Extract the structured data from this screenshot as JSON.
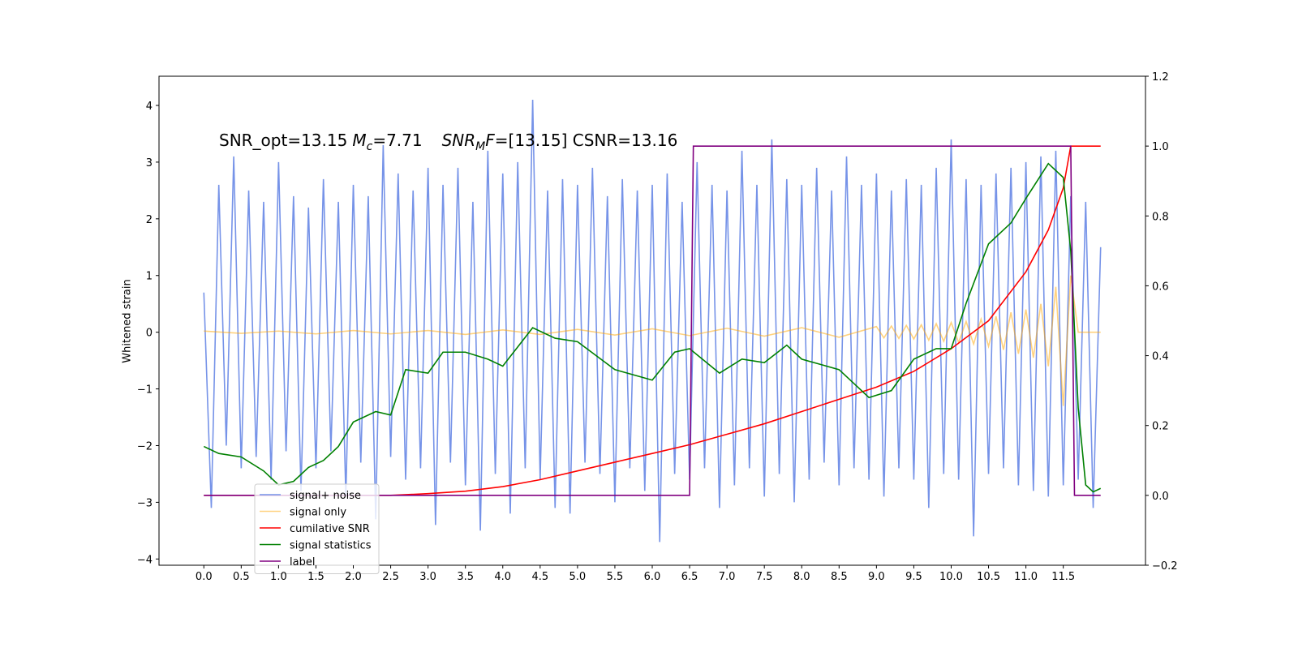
{
  "chart_data": {
    "type": "line",
    "annotation": [
      "SNR_opt=13.15",
      "M",
      "c",
      "=7.71",
      "SNR",
      "M",
      "F",
      "=[13.15] CSNR=13.16"
    ],
    "ylabel": "Whitened strain",
    "xlim": [
      -0.6,
      12.6
    ],
    "ylim": [
      -4.11,
      4.515
    ],
    "y2lim": [
      -0.2,
      1.2
    ],
    "xticks": [
      {
        "value": 0,
        "label": "0.0"
      },
      0.5,
      {
        "value": 1,
        "label": "1.0"
      },
      1.5,
      {
        "value": 2,
        "label": "2.0"
      },
      2.5,
      {
        "value": 3,
        "label": "3.0"
      },
      3.5,
      {
        "value": 4,
        "label": "4.0"
      },
      4.5,
      {
        "value": 5,
        "label": "5.0"
      },
      5.5,
      {
        "value": 6,
        "label": "6.0"
      },
      6.5,
      {
        "value": 7,
        "label": "7.0"
      },
      7.5,
      {
        "value": 8,
        "label": "8.0"
      },
      8.5,
      {
        "value": 9,
        "label": "9.0"
      },
      9.5,
      {
        "value": 10,
        "label": "10.0"
      },
      10.5,
      {
        "value": 11,
        "label": "11.0"
      },
      11.5
    ],
    "yticks": [
      {
        "value": -4,
        "label": "−4"
      },
      {
        "value": -3,
        "label": "−3"
      },
      {
        "value": -2,
        "label": "−2"
      },
      {
        "value": -1,
        "label": "−1"
      },
      0,
      1,
      2,
      3,
      4
    ],
    "y2ticks": [
      {
        "value": -0.2,
        "label": "−0.2"
      },
      {
        "value": 0,
        "label": "0.0"
      },
      0.2,
      0.4,
      0.6,
      0.8,
      {
        "value": 1,
        "label": "1.0"
      },
      1.2
    ],
    "series": [
      {
        "name": "signal+ noise",
        "color": "#7693e8",
        "opacity": 1,
        "x": [
          0.0,
          0.1,
          0.2,
          0.3,
          0.4,
          0.5,
          0.6,
          0.7,
          0.8,
          0.9,
          1.0,
          1.1,
          1.2,
          1.3,
          1.4,
          1.5,
          1.6,
          1.7,
          1.8,
          1.9,
          2.0,
          2.1,
          2.2,
          2.3,
          2.4,
          2.5,
          2.6,
          2.7,
          2.8,
          2.9,
          3.0,
          3.1,
          3.2,
          3.3,
          3.4,
          3.5,
          3.6,
          3.7,
          3.8,
          3.9,
          4.0,
          4.1,
          4.2,
          4.3,
          4.4,
          4.5,
          4.6,
          4.7,
          4.8,
          4.9,
          5.0,
          5.1,
          5.2,
          5.3,
          5.4,
          5.5,
          5.6,
          5.7,
          5.8,
          5.9,
          6.0,
          6.1,
          6.2,
          6.3,
          6.4,
          6.5,
          6.6,
          6.7,
          6.8,
          6.9,
          7.0,
          7.1,
          7.2,
          7.3,
          7.4,
          7.5,
          7.6,
          7.7,
          7.8,
          7.9,
          8.0,
          8.1,
          8.2,
          8.3,
          8.4,
          8.5,
          8.6,
          8.7,
          8.8,
          8.9,
          9.0,
          9.1,
          9.2,
          9.3,
          9.4,
          9.5,
          9.6,
          9.7,
          9.8,
          9.9,
          10.0,
          10.1,
          10.2,
          10.3,
          10.4,
          10.5,
          10.6,
          10.7,
          10.8,
          10.9,
          11.0,
          11.1,
          11.2,
          11.3,
          11.4,
          11.5,
          11.6,
          11.7,
          11.8,
          11.9,
          12.0
        ],
        "values": [
          0.7,
          -3.1,
          2.6,
          -2.0,
          3.1,
          -2.4,
          2.5,
          -2.2,
          2.3,
          -2.6,
          3.0,
          -2.1,
          2.4,
          -2.8,
          2.2,
          -2.4,
          2.7,
          -2.1,
          2.3,
          -2.9,
          2.6,
          -2.3,
          2.4,
          -3.3,
          3.3,
          -2.2,
          2.8,
          -2.6,
          2.5,
          -2.4,
          2.9,
          -3.4,
          2.6,
          -2.3,
          2.9,
          -2.7,
          2.3,
          -3.5,
          3.2,
          -2.5,
          2.8,
          -3.2,
          3.0,
          -2.4,
          4.1,
          -2.6,
          2.5,
          -3.1,
          2.7,
          -3.2,
          2.6,
          -2.3,
          2.9,
          -2.5,
          2.4,
          -3.0,
          2.7,
          -2.4,
          2.5,
          -2.8,
          2.6,
          -3.7,
          2.8,
          -2.5,
          2.3,
          -2.6,
          3.0,
          -2.4,
          2.6,
          -3.1,
          2.5,
          -2.7,
          3.2,
          -2.4,
          2.6,
          -2.9,
          3.4,
          -2.5,
          2.7,
          -3.0,
          2.6,
          -2.6,
          2.9,
          -2.3,
          2.5,
          -2.7,
          3.1,
          -2.4,
          2.6,
          -2.6,
          2.8,
          -2.9,
          2.5,
          -2.4,
          2.7,
          -2.6,
          2.6,
          -3.1,
          2.9,
          -2.5,
          3.4,
          -2.6,
          2.7,
          -3.6,
          2.6,
          -2.5,
          2.8,
          -2.4,
          2.9,
          -2.7,
          3.0,
          -2.8,
          3.1,
          -2.9,
          3.2,
          -2.7,
          2.4,
          -2.6,
          2.3,
          -3.1,
          1.5
        ]
      },
      {
        "name": "signal only",
        "color": "#ffa500",
        "opacity": 0.5,
        "x": [
          0.0,
          0.5,
          1.0,
          1.5,
          2.0,
          2.5,
          3.0,
          3.5,
          4.0,
          4.5,
          5.0,
          5.5,
          6.0,
          6.5,
          7.0,
          7.5,
          8.0,
          8.5,
          9.0,
          9.1,
          9.2,
          9.3,
          9.4,
          9.5,
          9.6,
          9.7,
          9.8,
          9.9,
          10.0,
          10.1,
          10.2,
          10.3,
          10.4,
          10.5,
          10.6,
          10.7,
          10.8,
          10.9,
          11.0,
          11.1,
          11.2,
          11.3,
          11.4,
          11.5,
          11.6,
          11.7,
          12.0
        ],
        "values": [
          0.02,
          -0.02,
          0.02,
          -0.03,
          0.03,
          -0.03,
          0.03,
          -0.04,
          0.04,
          -0.04,
          0.05,
          -0.05,
          0.06,
          -0.06,
          0.07,
          -0.07,
          0.08,
          -0.09,
          0.1,
          -0.1,
          0.11,
          -0.11,
          0.12,
          -0.12,
          0.13,
          -0.14,
          0.15,
          -0.16,
          0.17,
          -0.18,
          0.19,
          -0.21,
          0.23,
          -0.25,
          0.28,
          -0.31,
          0.35,
          -0.38,
          0.4,
          -0.45,
          0.5,
          -0.6,
          0.8,
          -1.3,
          1.0,
          0.0,
          0.0
        ]
      },
      {
        "name": "cumilative SNR",
        "color": "#ff0000",
        "opacity": 1,
        "axis": "y2",
        "x": [
          0.0,
          2.5,
          3.0,
          3.5,
          4.0,
          4.5,
          5.0,
          5.5,
          6.0,
          6.5,
          7.0,
          7.5,
          8.0,
          8.5,
          9.0,
          9.5,
          10.0,
          10.5,
          11.0,
          11.3,
          11.5,
          11.6,
          12.0
        ],
        "values": [
          0.0,
          0.0,
          0.005,
          0.012,
          0.025,
          0.045,
          0.07,
          0.095,
          0.12,
          0.145,
          0.175,
          0.205,
          0.24,
          0.275,
          0.31,
          0.355,
          0.42,
          0.5,
          0.64,
          0.76,
          0.88,
          1.0,
          1.0
        ]
      },
      {
        "name": "signal statistics",
        "color": "#008000",
        "opacity": 1,
        "axis": "y2",
        "x": [
          0.0,
          0.2,
          0.5,
          0.8,
          1.0,
          1.2,
          1.4,
          1.6,
          1.8,
          2.0,
          2.3,
          2.5,
          2.7,
          3.0,
          3.2,
          3.5,
          3.8,
          4.0,
          4.4,
          4.7,
          5.0,
          5.5,
          6.0,
          6.3,
          6.5,
          6.9,
          7.2,
          7.5,
          7.8,
          8.0,
          8.5,
          8.9,
          9.2,
          9.5,
          9.8,
          10.0,
          10.2,
          10.5,
          10.8,
          11.0,
          11.3,
          11.5,
          11.6,
          11.7,
          11.8,
          11.9,
          12.0
        ],
        "values": [
          0.14,
          0.12,
          0.11,
          0.07,
          0.03,
          0.04,
          0.08,
          0.1,
          0.14,
          0.21,
          0.24,
          0.23,
          0.36,
          0.35,
          0.41,
          0.41,
          0.39,
          0.37,
          0.48,
          0.45,
          0.44,
          0.36,
          0.33,
          0.41,
          0.42,
          0.35,
          0.39,
          0.38,
          0.43,
          0.39,
          0.36,
          0.28,
          0.3,
          0.39,
          0.42,
          0.42,
          0.55,
          0.72,
          0.78,
          0.85,
          0.95,
          0.91,
          0.7,
          0.25,
          0.03,
          0.01,
          0.02
        ]
      },
      {
        "name": "label",
        "color": "#800080",
        "opacity": 1,
        "axis": "y2",
        "x": [
          0.0,
          6.5,
          6.55,
          11.6,
          11.65,
          12.0
        ],
        "values": [
          0,
          0,
          1,
          1,
          0,
          0
        ]
      }
    ]
  }
}
